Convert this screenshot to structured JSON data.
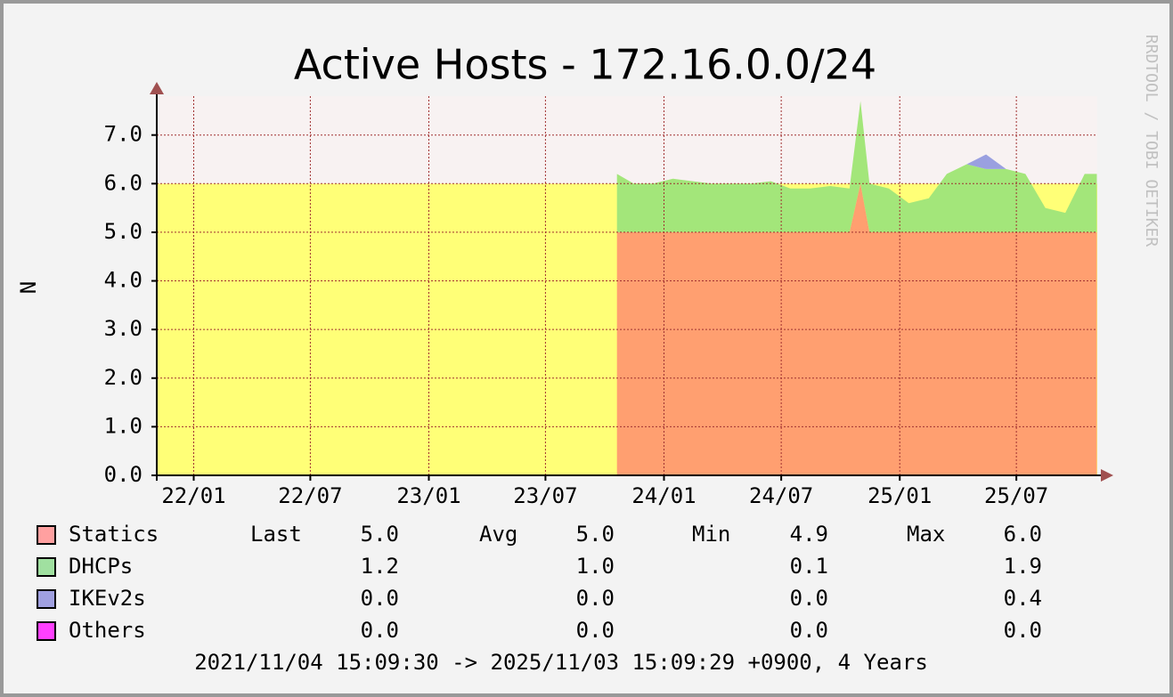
{
  "chart_data": {
    "type": "stacked_area",
    "title": "Active Hosts - 172.16.0.0/24",
    "y_label": "N",
    "watermark": "RRDTOOL / TOBI OETIKER",
    "footer": "2021/11/04 15:09:30 -> 2025/11/03 15:09:29 +0900, 4 Years",
    "xlim": [
      "2021-11-04T15:09:30",
      "2025-11-03T15:09:29"
    ],
    "ylim": [
      0,
      7.8
    ],
    "threshold": 6,
    "threshold_color": "#ffff77",
    "grid": true,
    "xticks": [
      {
        "value": "2022-01-01",
        "label": "22/01"
      },
      {
        "value": "2022-07-01",
        "label": "22/07"
      },
      {
        "value": "2023-01-01",
        "label": "23/01"
      },
      {
        "value": "2023-07-01",
        "label": "23/07"
      },
      {
        "value": "2024-01-01",
        "label": "24/01"
      },
      {
        "value": "2024-07-01",
        "label": "24/07"
      },
      {
        "value": "2025-01-01",
        "label": "25/01"
      },
      {
        "value": "2025-07-01",
        "label": "25/07"
      }
    ],
    "yticks": [
      {
        "value": 0,
        "label": "0.0"
      },
      {
        "value": 1,
        "label": "1.0"
      },
      {
        "value": 2,
        "label": "2.0"
      },
      {
        "value": 3,
        "label": "3.0"
      },
      {
        "value": 4,
        "label": "4.0"
      },
      {
        "value": 5,
        "label": "5.0"
      },
      {
        "value": 6,
        "label": "6.0"
      },
      {
        "value": 7,
        "label": "7.0"
      }
    ],
    "x": [
      "2023-10-20",
      "2023-11-15",
      "2023-12-15",
      "2024-01-15",
      "2024-02-15",
      "2024-03-15",
      "2024-04-15",
      "2024-05-15",
      "2024-06-15",
      "2024-07-15",
      "2024-08-15",
      "2024-09-15",
      "2024-10-15",
      "2024-11-01",
      "2024-11-15",
      "2024-12-15",
      "2025-01-15",
      "2025-02-15",
      "2025-03-15",
      "2025-04-15",
      "2025-05-15",
      "2025-06-15",
      "2025-07-15",
      "2025-08-15",
      "2025-09-15",
      "2025-10-15",
      "2025-11-03"
    ],
    "stats_headers": [
      "Last",
      "Avg",
      "Min",
      "Max"
    ],
    "series": [
      {
        "name": "Statics",
        "color": "#ffa0a0",
        "area_color": "#ff9f70",
        "values": [
          5,
          5,
          5,
          5,
          5,
          5,
          5,
          5,
          5,
          5,
          5,
          5,
          5,
          6,
          5,
          5,
          5,
          5,
          5,
          5,
          5,
          5,
          5,
          5,
          5,
          5,
          5
        ],
        "stats": [
          "5.0",
          "5.0",
          "4.9",
          "6.0"
        ]
      },
      {
        "name": "DHCPs",
        "color": "#a0e0a0",
        "area_color": "#a3e67a",
        "values": [
          1.2,
          1.0,
          1.0,
          1.1,
          1.05,
          1.0,
          1.0,
          1.0,
          1.05,
          0.9,
          0.9,
          0.95,
          0.9,
          1.7,
          1.0,
          0.9,
          0.6,
          0.7,
          1.2,
          1.4,
          1.3,
          1.3,
          1.2,
          0.5,
          0.4,
          1.2,
          1.2
        ],
        "stats": [
          "1.2",
          "1.0",
          "0.1",
          "1.9"
        ]
      },
      {
        "name": "IKEv2s",
        "color": "#a0a0e0",
        "area_color": "#9aa0e0",
        "values": [
          0,
          0,
          0,
          0,
          0,
          0,
          0,
          0,
          0,
          0,
          0,
          0,
          0,
          0,
          0,
          0,
          0,
          0,
          0,
          0,
          0.3,
          0,
          0,
          0,
          0,
          0,
          0
        ],
        "stats": [
          "0.0",
          "0.0",
          "0.0",
          "0.4"
        ]
      },
      {
        "name": "Others",
        "color": "#ff40ff",
        "area_color": "#ff40ff",
        "values": [
          0,
          0,
          0,
          0,
          0,
          0,
          0,
          0,
          0,
          0,
          0,
          0,
          0,
          0,
          0,
          0,
          0,
          0,
          0,
          0,
          0,
          0,
          0,
          0,
          0,
          0,
          0
        ],
        "stats": [
          "0.0",
          "0.0",
          "0.0",
          "0.0"
        ]
      }
    ]
  }
}
